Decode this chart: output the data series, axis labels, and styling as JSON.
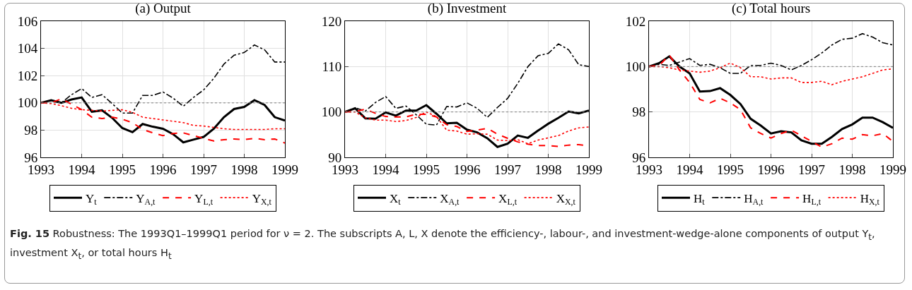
{
  "chart_data": [
    {
      "type": "line",
      "title": "(a) Output",
      "x": [
        1993,
        1993.25,
        1993.5,
        1993.75,
        1994,
        1994.25,
        1994.5,
        1994.75,
        1995,
        1995.25,
        1995.5,
        1995.75,
        1996,
        1996.25,
        1996.5,
        1996.75,
        1997,
        1997.25,
        1997.5,
        1997.75,
        1998,
        1998.25,
        1998.5,
        1998.75,
        1999
      ],
      "xlim": [
        1993,
        1999
      ],
      "xticks": [
        1993,
        1994,
        1995,
        1996,
        1997,
        1998,
        1999
      ],
      "ylim": [
        96,
        106
      ],
      "yticks": [
        96,
        98,
        100,
        102,
        104,
        106
      ],
      "grid": true,
      "legend": "bottom",
      "ref_lines": [
        {
          "axis": "y",
          "value": 100,
          "color": "#808080",
          "line_style": "dotted"
        }
      ],
      "series": [
        {
          "name": "Y$_{t}$",
          "color": "#000000",
          "line_style": "solid",
          "values": [
            100,
            100.2,
            100.0,
            100.25,
            100.4,
            99.35,
            99.45,
            98.9,
            98.15,
            97.85,
            98.45,
            98.25,
            98.1,
            97.7,
            97.1,
            97.3,
            97.5,
            98.1,
            98.95,
            99.55,
            99.7,
            100.2,
            99.85,
            98.95,
            98.7
          ]
        },
        {
          "name": "Y$_{A,t}$",
          "color": "#000000",
          "line_style": "dashdot",
          "values": [
            100,
            100.15,
            100.0,
            100.6,
            101.05,
            100.4,
            100.6,
            99.95,
            99.25,
            99.25,
            100.55,
            100.55,
            100.8,
            100.35,
            99.75,
            100.4,
            100.95,
            101.8,
            102.85,
            103.5,
            103.7,
            104.25,
            103.9,
            103.0,
            103.0
          ]
        },
        {
          "name": "Y$_{L,t}$",
          "color": "#ff0000",
          "line_style": "dashed",
          "values": [
            100,
            100.0,
            100.3,
            99.9,
            99.5,
            98.95,
            98.85,
            98.95,
            98.8,
            98.55,
            98.05,
            97.8,
            97.6,
            97.75,
            97.8,
            97.6,
            97.4,
            97.2,
            97.3,
            97.35,
            97.3,
            97.4,
            97.3,
            97.35,
            97.05
          ]
        },
        {
          "name": "Y$_{X,t}$",
          "color": "#ff0000",
          "line_style": "dotted",
          "values": [
            100,
            99.95,
            99.8,
            99.6,
            99.5,
            99.45,
            99.4,
            99.45,
            99.5,
            99.3,
            98.95,
            98.85,
            98.75,
            98.65,
            98.55,
            98.35,
            98.3,
            98.2,
            98.1,
            98.05,
            98.05,
            98.05,
            98.05,
            98.1,
            98.1
          ]
        }
      ],
      "annotations": [
        "Fig. 15 Robustness: The 1993Q1–1999Q1 period for ν = 2. The subscripts A, L, X denote the efficiency-, labour-, and investment-wedge-alone components of output Y$_{t}$, investment X$_{t}$, or total hours H$_{t}$"
      ]
    },
    {
      "type": "line",
      "title": "(b) Investment",
      "x": [
        1993,
        1993.25,
        1993.5,
        1993.75,
        1994,
        1994.25,
        1994.5,
        1994.75,
        1995,
        1995.25,
        1995.5,
        1995.75,
        1996,
        1996.25,
        1996.5,
        1996.75,
        1997,
        1997.25,
        1997.5,
        1997.75,
        1998,
        1998.25,
        1998.5,
        1998.75,
        1999
      ],
      "xlim": [
        1993,
        1999
      ],
      "xticks": [
        1993,
        1994,
        1995,
        1996,
        1997,
        1998,
        1999
      ],
      "ylim": [
        90,
        120
      ],
      "yticks": [
        90,
        100,
        110,
        120
      ],
      "grid": true,
      "legend": "bottom",
      "ref_lines": [
        {
          "axis": "y",
          "value": 100,
          "color": "#808080",
          "line_style": "dotted"
        }
      ],
      "series": [
        {
          "name": "X$_{t}$",
          "color": "#000000",
          "line_style": "solid",
          "values": [
            100,
            100.8,
            98.6,
            98.5,
            99.9,
            99.2,
            100.3,
            100.3,
            101.5,
            99.6,
            97.5,
            97.6,
            96.1,
            95.5,
            94.2,
            92.3,
            93.0,
            94.8,
            94.3,
            95.9,
            97.4,
            98.7,
            100.1,
            99.7,
            100.3
          ]
        },
        {
          "name": "X$_{A,t}$",
          "color": "#000000",
          "line_style": "dashdot",
          "values": [
            100,
            100.9,
            100.2,
            102.1,
            103.4,
            100.8,
            101.3,
            99.4,
            97.3,
            97.1,
            101.2,
            101.1,
            102.0,
            100.8,
            98.8,
            101.0,
            103.0,
            106.3,
            110.0,
            112.4,
            112.9,
            115.0,
            113.7,
            110.4,
            110.0
          ]
        },
        {
          "name": "X$_{L,t}$",
          "color": "#ff0000",
          "line_style": "dashed",
          "values": [
            100,
            100.1,
            100.6,
            99.7,
            99.0,
            98.9,
            98.9,
            99.5,
            99.5,
            98.9,
            97.2,
            96.8,
            95.7,
            96.0,
            96.4,
            95.1,
            94.2,
            93.4,
            92.9,
            92.6,
            92.6,
            92.4,
            92.7,
            92.8,
            92.5
          ]
        },
        {
          "name": "X$_{X,t}$",
          "color": "#ff0000",
          "line_style": "dotted",
          "values": [
            100,
            100.0,
            98.7,
            98.2,
            98.2,
            97.9,
            98.1,
            98.8,
            100.0,
            99.0,
            96.0,
            95.8,
            95.1,
            95.2,
            95.1,
            93.8,
            93.7,
            93.9,
            93.0,
            93.8,
            94.3,
            94.8,
            95.8,
            96.5,
            96.7
          ]
        }
      ]
    },
    {
      "type": "line",
      "title": "(c) Total hours",
      "x": [
        1993,
        1993.25,
        1993.5,
        1993.75,
        1994,
        1994.25,
        1994.5,
        1994.75,
        1995,
        1995.25,
        1995.5,
        1995.75,
        1996,
        1996.25,
        1996.5,
        1996.75,
        1997,
        1997.25,
        1997.5,
        1997.75,
        1998,
        1998.25,
        1998.5,
        1998.75,
        1999
      ],
      "xlim": [
        1993,
        1999
      ],
      "xticks": [
        1993,
        1994,
        1995,
        1996,
        1997,
        1998,
        1999
      ],
      "ylim": [
        96,
        102
      ],
      "yticks": [
        96,
        98,
        100,
        102
      ],
      "grid": true,
      "legend": "bottom",
      "ref_lines": [
        {
          "axis": "y",
          "value": 100,
          "color": "#808080",
          "line_style": "dotted"
        }
      ],
      "series": [
        {
          "name": "H$_{t}$",
          "color": "#000000",
          "line_style": "solid",
          "values": [
            100,
            100.15,
            100.45,
            100.0,
            99.7,
            98.9,
            98.92,
            99.05,
            98.75,
            98.35,
            97.7,
            97.4,
            97.05,
            97.15,
            97.1,
            96.75,
            96.6,
            96.6,
            96.9,
            97.25,
            97.45,
            97.75,
            97.75,
            97.55,
            97.3
          ]
        },
        {
          "name": "H$_{A,t}$",
          "color": "#000000",
          "line_style": "dashdot",
          "values": [
            100,
            100.1,
            100.05,
            100.2,
            100.35,
            100.05,
            100.1,
            99.95,
            99.7,
            99.7,
            100.05,
            100.05,
            100.15,
            100.05,
            99.85,
            100.05,
            100.3,
            100.6,
            100.95,
            101.2,
            101.25,
            101.45,
            101.3,
            101.05,
            100.95
          ]
        },
        {
          "name": "H$_{L,t}$",
          "color": "#ff0000",
          "line_style": "dashed",
          "values": [
            100,
            100.05,
            100.5,
            99.85,
            99.3,
            98.55,
            98.4,
            98.6,
            98.4,
            98.1,
            97.3,
            97.05,
            96.85,
            97.05,
            97.2,
            96.95,
            96.7,
            96.45,
            96.6,
            96.85,
            96.8,
            97.0,
            96.95,
            97.05,
            96.7
          ]
        },
        {
          "name": "H$_{X,t}$",
          "color": "#ff0000",
          "line_style": "dotted",
          "values": [
            100,
            100.0,
            99.95,
            99.85,
            99.8,
            99.75,
            99.8,
            99.95,
            100.15,
            99.95,
            99.55,
            99.55,
            99.45,
            99.5,
            99.5,
            99.3,
            99.3,
            99.35,
            99.2,
            99.35,
            99.45,
            99.55,
            99.7,
            99.85,
            99.9
          ]
        }
      ]
    }
  ]
}
